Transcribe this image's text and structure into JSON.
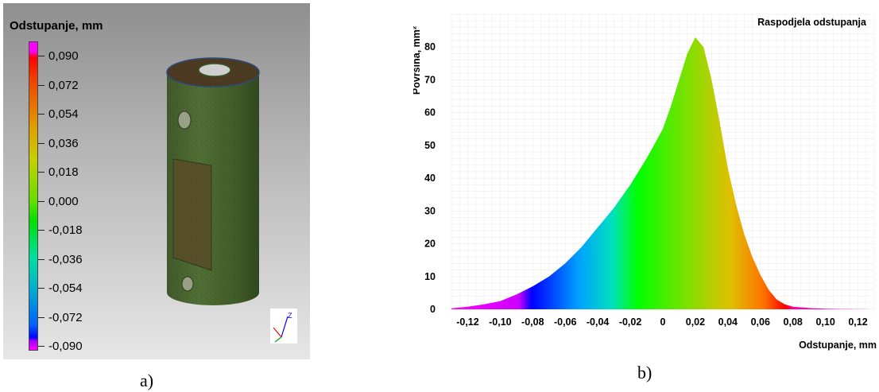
{
  "panel_a": {
    "legend_title": "Odstupanje, mm",
    "legend_values": [
      "0,090",
      "0,072",
      "0,054",
      "0,036",
      "0,018",
      "0,000",
      "-0,018",
      "-0,036",
      "-0,054",
      "-0,072",
      "-0,090"
    ],
    "label": "a)"
  },
  "panel_b": {
    "label": "b)"
  },
  "chart_data": {
    "type": "area",
    "title": "Raspodjela odstupanja",
    "xlabel": "Odstupanje, mm",
    "ylabel": "Površina,  mm²",
    "xlim": [
      -0.13,
      0.13
    ],
    "ylim": [
      0,
      90
    ],
    "x_ticks": [
      -0.12,
      -0.1,
      -0.08,
      -0.06,
      -0.04,
      -0.02,
      0,
      0.02,
      0.04,
      0.06,
      0.08,
      0.1,
      0.12
    ],
    "x_tick_labels": [
      "-0,12",
      "-0,10",
      "-0,08",
      "-0,06",
      "-0,04",
      "-0,02",
      "0",
      "0,02",
      "0,04",
      "0,06",
      "0,08",
      "0,10",
      "0,12"
    ],
    "y_ticks": [
      0,
      10,
      20,
      30,
      40,
      50,
      60,
      70,
      80
    ],
    "y_tick_labels": [
      "0",
      "10",
      "20",
      "30",
      "40",
      "50",
      "60",
      "70",
      "80"
    ],
    "grid": true,
    "series": [
      {
        "x": [
          -0.13,
          -0.12,
          -0.11,
          -0.1,
          -0.09,
          -0.08,
          -0.07,
          -0.06,
          -0.05,
          -0.04,
          -0.03,
          -0.02,
          -0.01,
          0.0,
          0.005,
          0.01,
          0.015,
          0.02,
          0.025,
          0.03,
          0.035,
          0.04,
          0.045,
          0.05,
          0.055,
          0.06,
          0.065,
          0.07,
          0.075,
          0.08,
          0.09,
          0.1,
          0.11,
          0.12,
          0.13
        ],
        "y": [
          0.3,
          0.8,
          1.5,
          2.5,
          4.5,
          7,
          10,
          14,
          19,
          25,
          31,
          38,
          46,
          55,
          62,
          70,
          78,
          83,
          80,
          70,
          57,
          43,
          32,
          23,
          16,
          10.5,
          6,
          3,
          1.5,
          0.8,
          0.4,
          0.2,
          0.1,
          0.05,
          0
        ]
      }
    ]
  }
}
